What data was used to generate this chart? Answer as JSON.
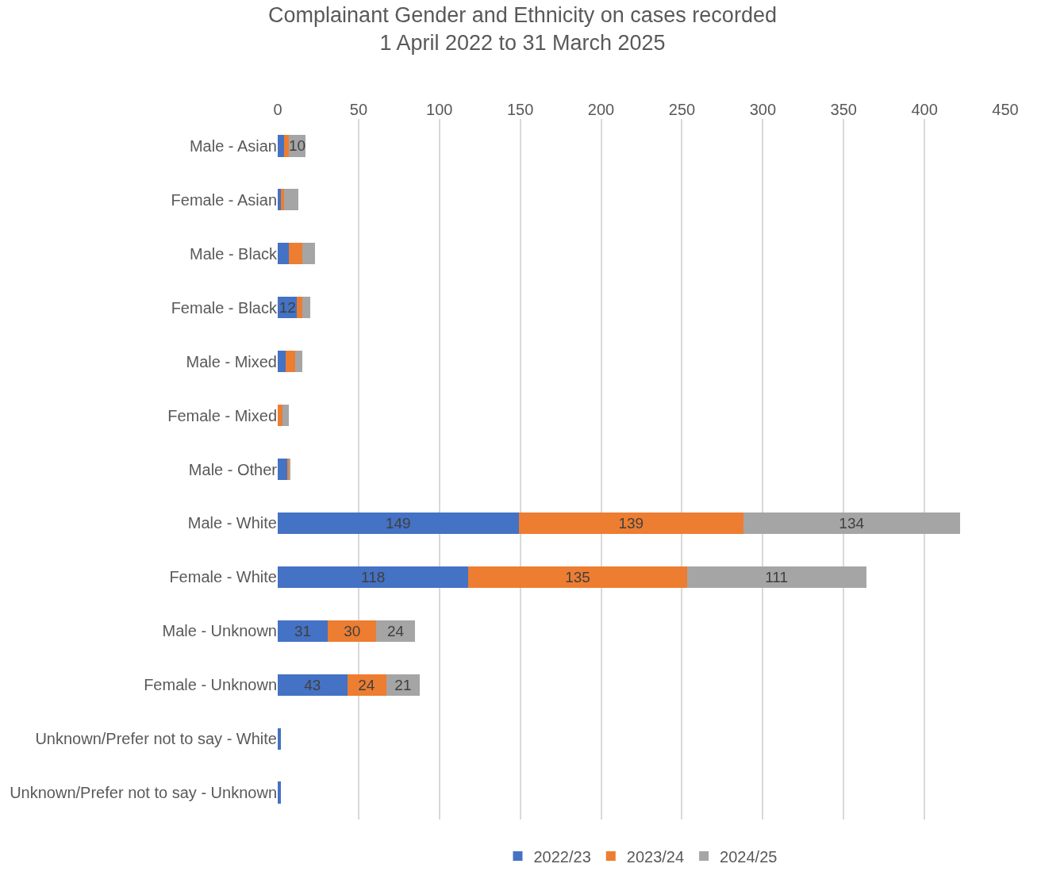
{
  "chart_data": {
    "type": "bar",
    "orientation": "horizontal",
    "stacked": true,
    "title": "Complainant Gender and Ethnicity on cases recorded\n1 April 2022 to 31 March 2025",
    "categories": [
      "Male - Asian",
      "Female - Asian",
      "Male - Black",
      "Female - Black",
      "Male - Mixed",
      "Female - Mixed",
      "Male - Other",
      "Male - White",
      "Female - White",
      "Male - Unknown",
      "Female - Unknown",
      "Unknown/Prefer not to say - White",
      "Unknown/Prefer not to say - Unknown"
    ],
    "series": [
      {
        "name": "2022/23",
        "color": "#4472c4",
        "values": [
          4,
          2,
          7,
          12,
          5,
          0,
          6,
          149,
          118,
          31,
          43,
          2,
          2
        ],
        "value_labels": [
          null,
          null,
          null,
          "12",
          null,
          null,
          null,
          "149",
          "118",
          "31",
          "43",
          null,
          null
        ]
      },
      {
        "name": "2023/24",
        "color": "#ed7d31",
        "values": [
          3,
          2,
          8,
          3,
          6,
          3,
          1,
          139,
          135,
          30,
          24,
          0,
          0
        ],
        "value_labels": [
          null,
          null,
          null,
          null,
          null,
          null,
          null,
          "139",
          "135",
          "30",
          "24",
          null,
          null
        ]
      },
      {
        "name": "2024/25",
        "color": "#a5a5a5",
        "values": [
          10,
          9,
          8,
          5,
          4,
          4,
          1,
          134,
          111,
          24,
          21,
          0,
          0
        ],
        "value_labels": [
          "10",
          null,
          null,
          null,
          null,
          null,
          null,
          "134",
          "111",
          "24",
          "21",
          null,
          null
        ]
      }
    ],
    "xlim": [
      0,
      450
    ],
    "xticks": [
      0,
      50,
      100,
      150,
      200,
      250,
      300,
      350,
      400,
      450
    ],
    "grid": "x",
    "legend": "bottom"
  }
}
